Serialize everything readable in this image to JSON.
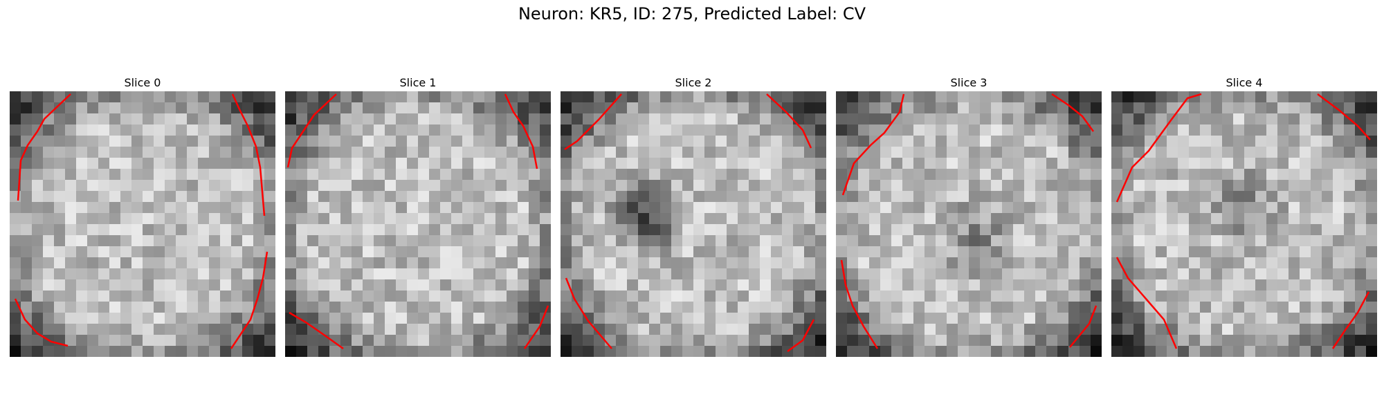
{
  "figure": {
    "title": "Neuron: KR5, ID: 275, Predicted Label: CV"
  },
  "panels": [
    {
      "title": "Slice 0",
      "dark_blob": false
    },
    {
      "title": "Slice 1",
      "dark_blob": false
    },
    {
      "title": "Slice 2",
      "dark_blob": true
    },
    {
      "title": "Slice 3",
      "dark_blob": true
    },
    {
      "title": "Slice 4",
      "dark_blob": true
    }
  ],
  "colors": {
    "contour": "#ff0000",
    "background": "#ffffff"
  }
}
